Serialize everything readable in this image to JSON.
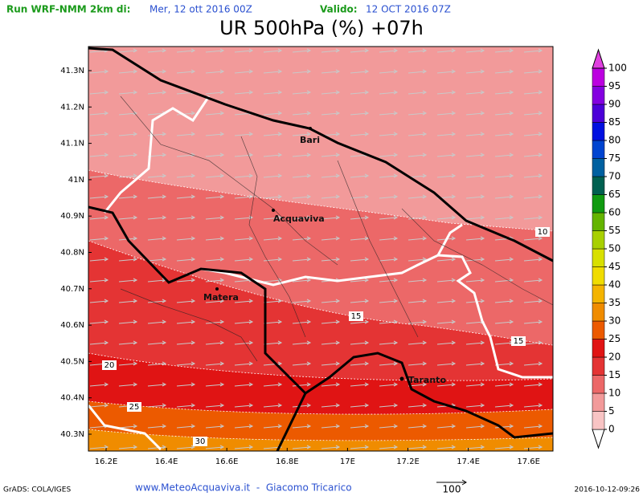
{
  "header": {
    "run_label": "Run WRF-NMM 2km di:",
    "run_date": "Mer, 12 ott 2016 00Z",
    "valid_label": "Valido:",
    "valid_date": "12 OCT 2016 07Z"
  },
  "title": "UR 500hPa (%) +07h",
  "lat_labels": [
    "41.3N",
    "41.2N",
    "41.1N",
    "41N",
    "40.9N",
    "40.8N",
    "40.7N",
    "40.6N",
    "40.5N",
    "40.4N",
    "40.3N"
  ],
  "lon_labels": [
    "16.2E",
    "16.4E",
    "16.6E",
    "16.8E",
    "17E",
    "17.2E",
    "17.4E",
    "17.6E"
  ],
  "places": [
    "Bari",
    "Acquaviva",
    "Matera",
    "Taranto"
  ],
  "contour_labels": [
    "10",
    "15",
    "15",
    "20",
    "25",
    "30"
  ],
  "colorbar": {
    "levels": [
      0,
      5,
      10,
      15,
      20,
      25,
      30,
      35,
      40,
      45,
      50,
      55,
      60,
      65,
      70,
      75,
      80,
      85,
      90,
      95,
      100
    ],
    "colors": [
      "#f8c4c4",
      "#f29a9a",
      "#ec6868",
      "#e43434",
      "#e01414",
      "#ec5a00",
      "#f08c00",
      "#f4b400",
      "#f0dc00",
      "#d8e000",
      "#a8d000",
      "#64b400",
      "#109a10",
      "#006050",
      "#0060a0",
      "#0044d0",
      "#0010e0",
      "#4c00d8",
      "#8400e0",
      "#bc00e0"
    ]
  },
  "footer": {
    "software": "GrADS: COLA/IGES",
    "credit": "www.MeteoAcquaviva.it  -  Giacomo Tricarico",
    "vector_scale": "100",
    "timestamp": "2016-10-12-09:26"
  }
}
